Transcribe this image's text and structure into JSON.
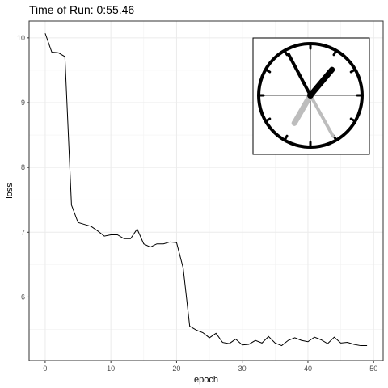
{
  "title": "Time of Run: 0:55.46",
  "chart_data": {
    "type": "line",
    "title": "Time of Run: 0:55.46",
    "xlabel": "epoch",
    "ylabel": "loss",
    "xlim": [
      -2.45,
      51.45
    ],
    "ylim": [
      5.02,
      10.26
    ],
    "x_ticks": [
      "0",
      "10",
      "20",
      "30",
      "40",
      "50"
    ],
    "y_ticks": [
      "6",
      "7",
      "8",
      "9",
      "10"
    ],
    "grid": true,
    "series": [
      {
        "x": [
          0,
          1,
          2,
          3,
          4,
          5,
          6,
          7,
          8,
          9,
          10,
          11,
          12,
          13,
          14,
          15,
          16,
          17,
          18,
          19,
          20,
          21,
          22,
          23,
          24,
          25,
          26,
          27,
          28,
          29,
          30,
          31,
          32,
          33,
          34,
          35,
          36,
          37,
          38,
          39,
          40,
          41,
          42,
          43,
          44,
          45,
          46,
          47,
          48,
          49
        ],
        "y": [
          10.07,
          9.78,
          9.77,
          9.71,
          7.42,
          7.15,
          7.12,
          7.09,
          7.02,
          6.94,
          6.96,
          6.96,
          6.9,
          6.9,
          7.05,
          6.82,
          6.77,
          6.82,
          6.82,
          6.85,
          6.84,
          6.45,
          5.55,
          5.49,
          5.45,
          5.37,
          5.44,
          5.3,
          5.28,
          5.35,
          5.26,
          5.27,
          5.33,
          5.29,
          5.39,
          5.29,
          5.25,
          5.33,
          5.37,
          5.33,
          5.31,
          5.38,
          5.34,
          5.28,
          5.38,
          5.29,
          5.3,
          5.27,
          5.25,
          5.25
        ]
      }
    ],
    "inset": {
      "type": "clock",
      "hands": [
        {
          "color": "#000000",
          "angle_deg": 40,
          "length": 0.65,
          "width": 7
        },
        {
          "color": "#000000",
          "angle_deg": -28,
          "length": 0.9,
          "width": 4
        },
        {
          "color": "#bdbdbd",
          "angle_deg": 210,
          "length": 0.62,
          "width": 7
        },
        {
          "color": "#bdbdbd",
          "angle_deg": 151,
          "length": 0.9,
          "width": 4
        }
      ]
    }
  }
}
